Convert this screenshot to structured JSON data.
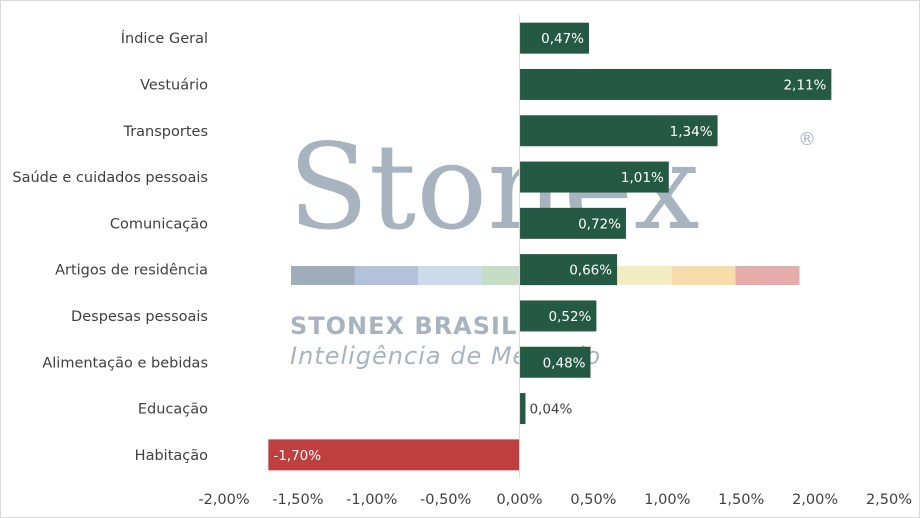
{
  "chart_data": {
    "type": "bar",
    "orientation": "horizontal",
    "categories": [
      "Índice Geral",
      "Vestuário",
      "Transportes",
      "Saúde e cuidados pessoais",
      "Comunicação",
      "Artigos de residência",
      "Despesas pessoais",
      "Alimentação e bebidas",
      "Educação",
      "Habitação"
    ],
    "values": [
      0.47,
      2.11,
      1.34,
      1.01,
      0.72,
      0.66,
      0.52,
      0.48,
      0.04,
      -1.7
    ],
    "data_labels": [
      "0,47%",
      "2,11%",
      "1,34%",
      "1,01%",
      "0,72%",
      "0,66%",
      "0,52%",
      "0,48%",
      "0,04%",
      "-1,70%"
    ],
    "xlim": [
      -2.0,
      2.5
    ],
    "x_ticks": [
      -2.0,
      -1.5,
      -1.0,
      -0.5,
      0.0,
      0.5,
      1.0,
      1.5,
      2.0,
      2.5
    ],
    "x_tick_labels": [
      "-2,00%",
      "-1,50%",
      "-1,00%",
      "-0,50%",
      "0,00%",
      "0,50%",
      "1,00%",
      "1,50%",
      "2,00%",
      "2,50%"
    ],
    "title": "",
    "xlabel": "",
    "ylabel": "",
    "grid": false,
    "legend": "none",
    "colors": {
      "positive": "#245a43",
      "negative": "#bf3f3f",
      "axis": "#d9d9d9",
      "label_inside": "#ffffff",
      "label_outside": "#404040"
    }
  },
  "watermark": {
    "logo_text": "Stonex",
    "registered": "®",
    "line1": "STONEX BRASIL",
    "line2": "Inteligência de Mercado",
    "stripe_colors": [
      "#9aa8b6",
      "#aebfd6",
      "#c8dbe9",
      "#c4dcc2",
      "#d5e7c3",
      "#f2ecc0",
      "#f5dba4",
      "#e3a9a6"
    ]
  }
}
